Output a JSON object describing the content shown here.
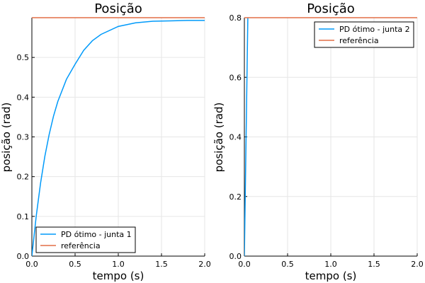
{
  "chart_data": [
    {
      "type": "line",
      "title": "Posição",
      "xlabel": "tempo (s)",
      "ylabel": "posição (rad)",
      "xlim": [
        0,
        2.0
      ],
      "ylim": [
        0,
        0.6
      ],
      "xticks": [
        0,
        0.5,
        1.0,
        1.5,
        2.0
      ],
      "xtick_labels": [
        "0.0",
        "0.5",
        "1.0",
        "1.5",
        "2.0"
      ],
      "yticks": [
        0,
        0.1,
        0.2,
        0.3,
        0.4,
        0.5
      ],
      "ytick_labels": [
        "0.0",
        "0.1",
        "0.2",
        "0.3",
        "0.4",
        "0.5"
      ],
      "grid": true,
      "legend_position": "bottom-left",
      "series": [
        {
          "name": "PD ótimo - junta 1",
          "color": "#009AFA",
          "x": [
            0,
            0.05,
            0.1,
            0.15,
            0.2,
            0.25,
            0.3,
            0.4,
            0.5,
            0.6,
            0.7,
            0.8,
            1.0,
            1.2,
            1.4,
            1.6,
            1.8,
            2.0
          ],
          "y": [
            0,
            0.1,
            0.183,
            0.251,
            0.306,
            0.352,
            0.389,
            0.445,
            0.483,
            0.518,
            0.542,
            0.558,
            0.578,
            0.587,
            0.591,
            0.592,
            0.593,
            0.593
          ]
        },
        {
          "name": "referência",
          "color": "#E26F46",
          "x": [
            0,
            2.0
          ],
          "y": [
            0.6,
            0.6
          ]
        }
      ]
    },
    {
      "type": "line",
      "title": "Posição",
      "xlabel": "tempo (s)",
      "ylabel": "posição (rad)",
      "xlim": [
        0,
        2.0
      ],
      "ylim": [
        0,
        0.8
      ],
      "xticks": [
        0,
        0.5,
        1.0,
        1.5,
        2.0
      ],
      "xtick_labels": [
        "0.0",
        "0.5",
        "1.0",
        "1.5",
        "2.0"
      ],
      "yticks": [
        0,
        0.2,
        0.4,
        0.6,
        0.8
      ],
      "ytick_labels": [
        "0.0",
        "0.2",
        "0.4",
        "0.6",
        "0.8"
      ],
      "grid": true,
      "legend_position": "top-right",
      "series": [
        {
          "name": "PD ótimo - junta 2",
          "color": "#009AFA",
          "x": [
            0,
            0.01,
            0.02,
            0.03,
            0.04
          ],
          "y": [
            0,
            0.2,
            0.4,
            0.6,
            0.8
          ]
        },
        {
          "name": "referência",
          "color": "#E26F46",
          "x": [
            0,
            2.0
          ],
          "y": [
            0.8,
            0.8
          ]
        }
      ]
    }
  ]
}
